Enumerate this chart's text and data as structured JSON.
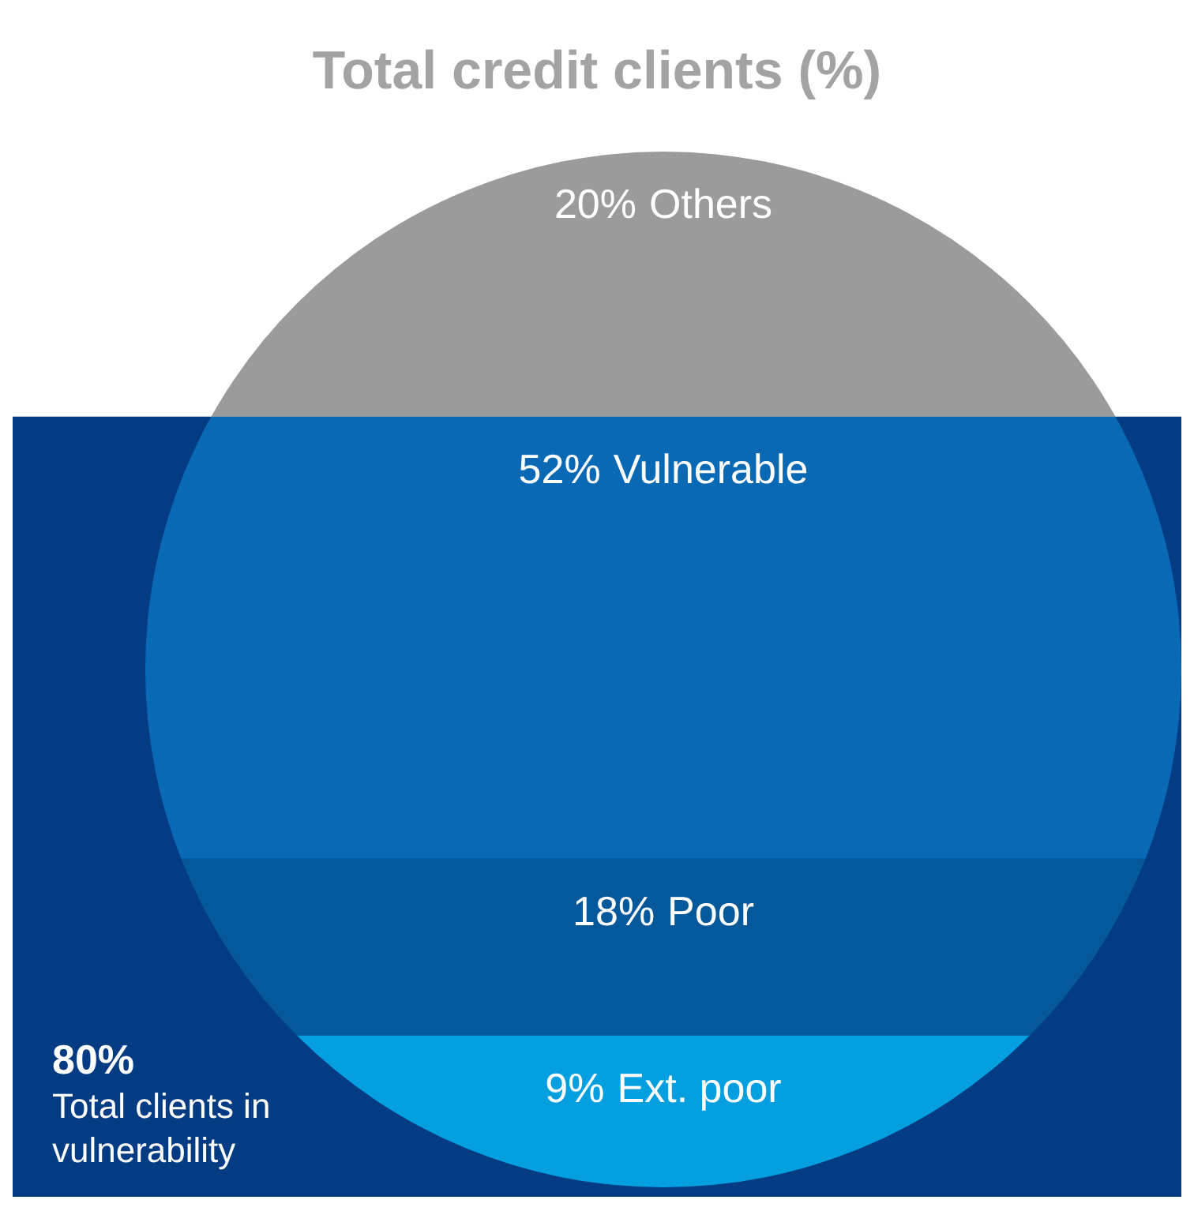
{
  "chart_data": {
    "type": "other",
    "title": "Total credit clients (%)",
    "categories": [
      "Others",
      "Vulnerable",
      "Poor",
      "Ext. poor"
    ],
    "values": [
      20,
      52,
      18,
      9
    ],
    "value_labels": [
      "20%",
      "52%",
      "18%",
      "9%"
    ],
    "colors": [
      "#9b9b9b",
      "#0a69b4",
      "#05589a",
      "#049fdf"
    ],
    "annotations": [
      "80%",
      "Total clients in vulnerability"
    ]
  }
}
